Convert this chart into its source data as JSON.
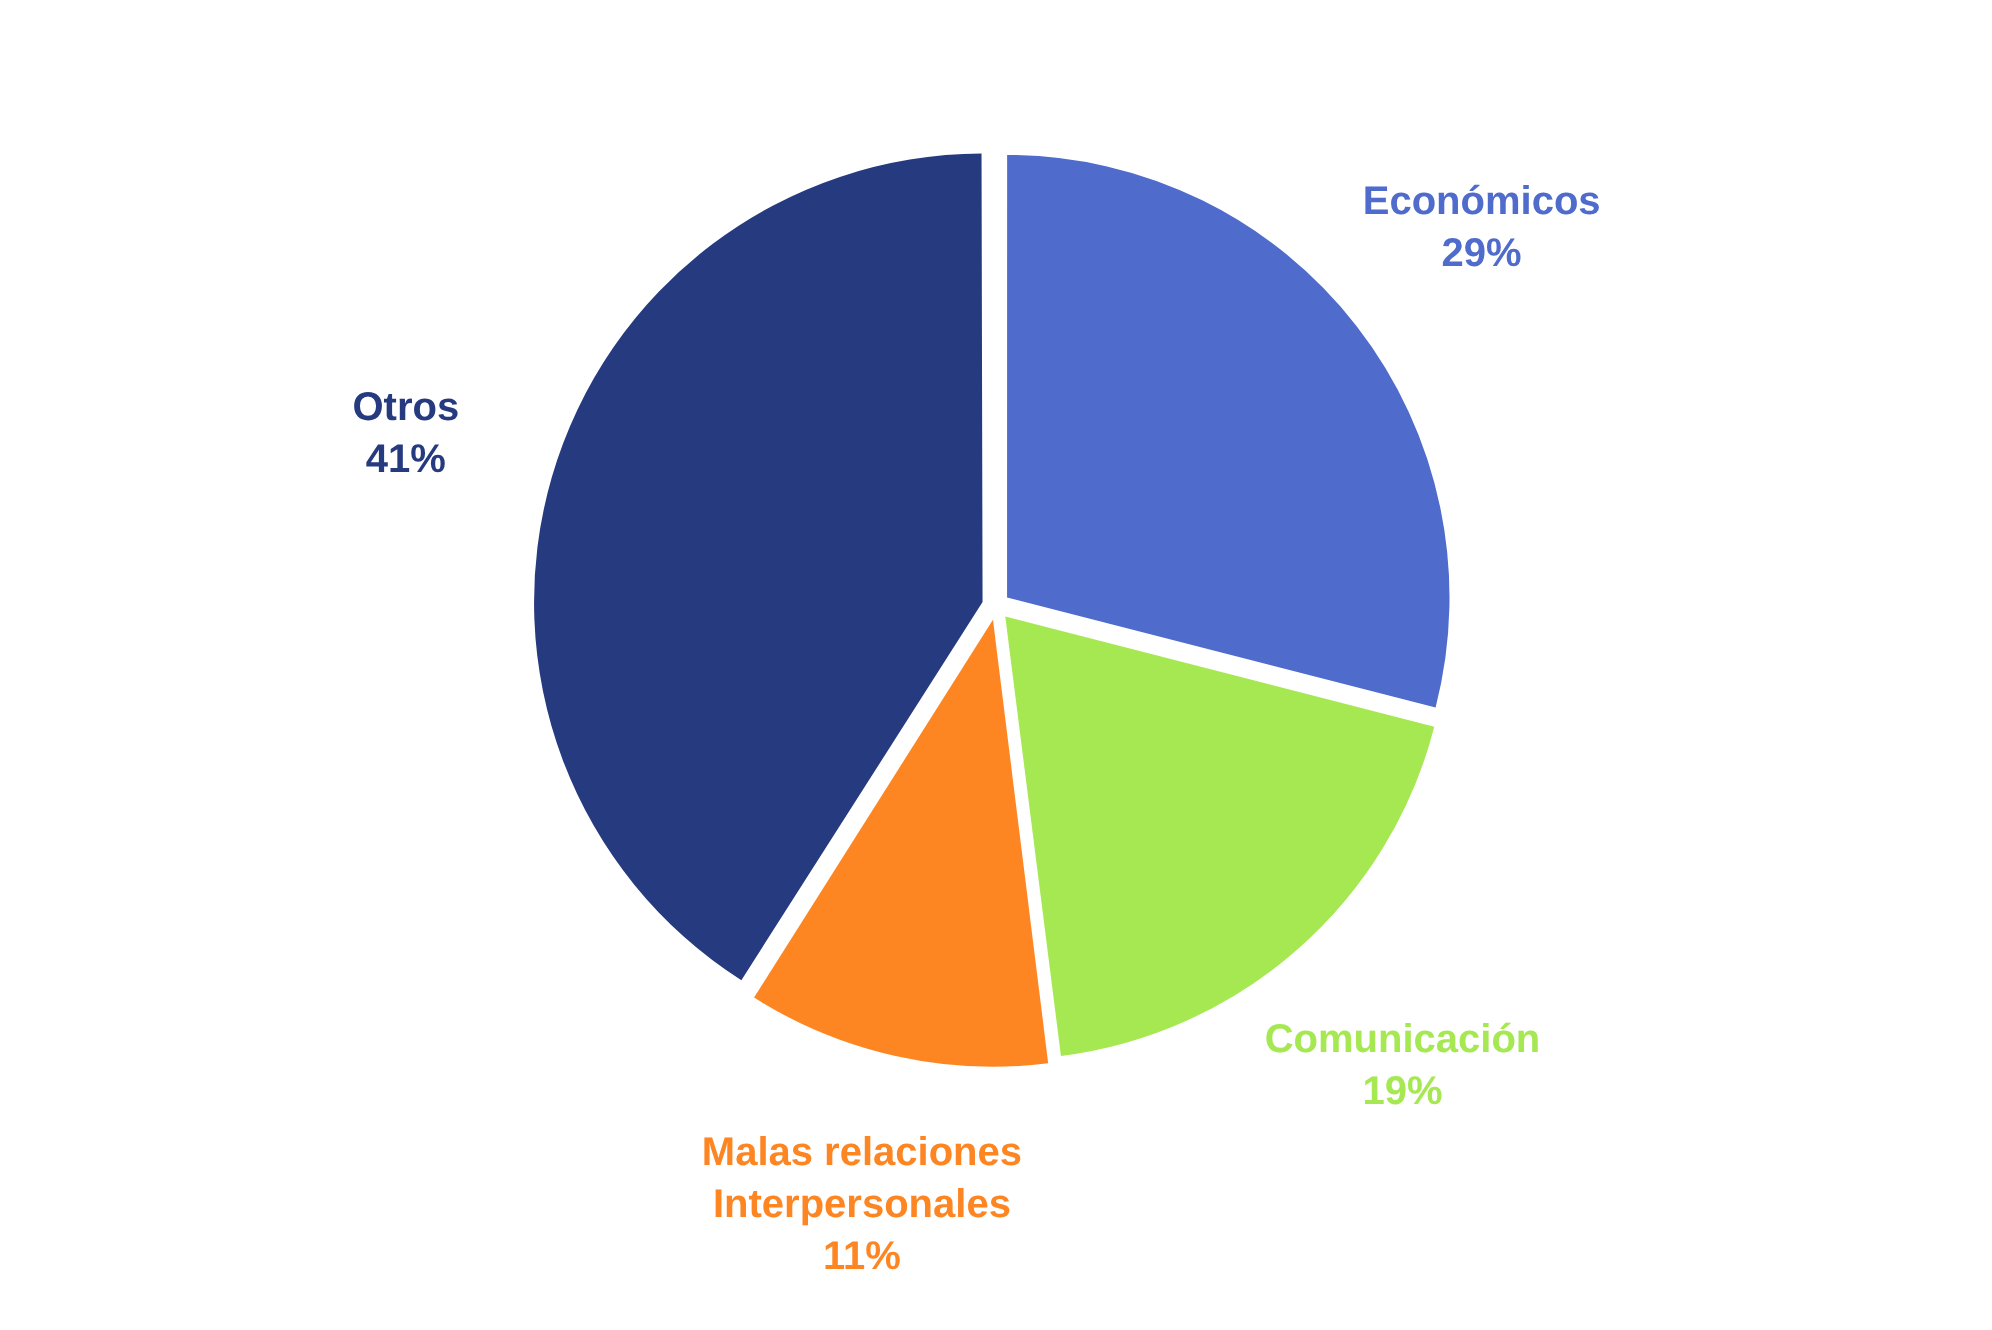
{
  "chart_data": {
    "type": "pie",
    "categories": [
      "Económicos",
      "Comunicación",
      "Malas relaciones Interpersonales",
      "Otros"
    ],
    "values": [
      29,
      19,
      11,
      41
    ],
    "value_labels": [
      "29%",
      "19%",
      "11%",
      "41%"
    ],
    "colors": [
      "#4f6bcb",
      "#a6e852",
      "#fd8622",
      "#263a80"
    ],
    "legend": false
  }
}
